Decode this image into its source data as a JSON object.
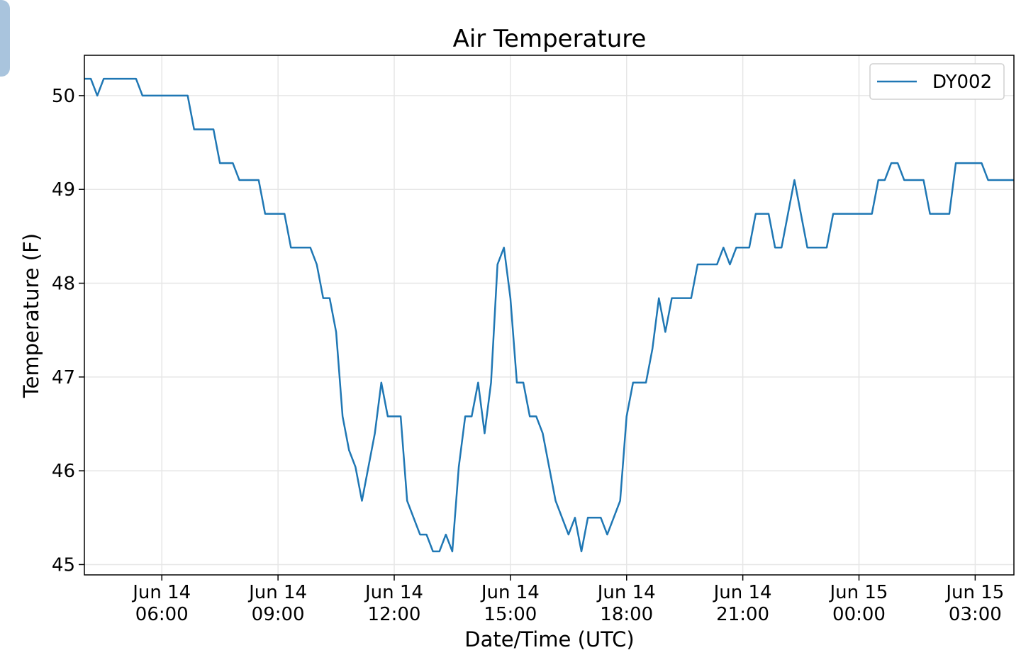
{
  "chart_data": {
    "type": "line",
    "title": "Air Temperature",
    "xlabel": "Date/Time (UTC)",
    "ylabel": "Temperature (F)",
    "x": [
      "Jun 14 04:00",
      "Jun 14 04:10",
      "Jun 14 04:20",
      "Jun 14 04:30",
      "Jun 14 04:40",
      "Jun 14 04:50",
      "Jun 14 05:00",
      "Jun 14 05:10",
      "Jun 14 05:20",
      "Jun 14 05:30",
      "Jun 14 05:40",
      "Jun 14 05:50",
      "Jun 14 06:00",
      "Jun 14 06:10",
      "Jun 14 06:20",
      "Jun 14 06:30",
      "Jun 14 06:40",
      "Jun 14 06:50",
      "Jun 14 07:00",
      "Jun 14 07:10",
      "Jun 14 07:20",
      "Jun 14 07:30",
      "Jun 14 07:40",
      "Jun 14 07:50",
      "Jun 14 08:00",
      "Jun 14 08:10",
      "Jun 14 08:20",
      "Jun 14 08:30",
      "Jun 14 08:40",
      "Jun 14 08:50",
      "Jun 14 09:00",
      "Jun 14 09:10",
      "Jun 14 09:20",
      "Jun 14 09:30",
      "Jun 14 09:40",
      "Jun 14 09:50",
      "Jun 14 10:00",
      "Jun 14 10:10",
      "Jun 14 10:20",
      "Jun 14 10:30",
      "Jun 14 10:40",
      "Jun 14 10:50",
      "Jun 14 11:00",
      "Jun 14 11:10",
      "Jun 14 11:20",
      "Jun 14 11:30",
      "Jun 14 11:40",
      "Jun 14 11:50",
      "Jun 14 12:00",
      "Jun 14 12:10",
      "Jun 14 12:20",
      "Jun 14 12:30",
      "Jun 14 12:40",
      "Jun 14 12:50",
      "Jun 14 13:00",
      "Jun 14 13:10",
      "Jun 14 13:20",
      "Jun 14 13:30",
      "Jun 14 13:40",
      "Jun 14 13:50",
      "Jun 14 14:00",
      "Jun 14 14:10",
      "Jun 14 14:20",
      "Jun 14 14:30",
      "Jun 14 14:40",
      "Jun 14 14:50",
      "Jun 14 15:00",
      "Jun 14 15:10",
      "Jun 14 15:20",
      "Jun 14 15:30",
      "Jun 14 15:40",
      "Jun 14 15:50",
      "Jun 14 16:00",
      "Jun 14 16:10",
      "Jun 14 16:20",
      "Jun 14 16:30",
      "Jun 14 16:40",
      "Jun 14 16:50",
      "Jun 14 17:00",
      "Jun 14 17:10",
      "Jun 14 17:20",
      "Jun 14 17:30",
      "Jun 14 17:40",
      "Jun 14 17:50",
      "Jun 14 18:00",
      "Jun 14 18:10",
      "Jun 14 18:20",
      "Jun 14 18:30",
      "Jun 14 18:40",
      "Jun 14 18:50",
      "Jun 14 19:00",
      "Jun 14 19:10",
      "Jun 14 19:20",
      "Jun 14 19:30",
      "Jun 14 19:40",
      "Jun 14 19:50",
      "Jun 14 20:00",
      "Jun 14 20:10",
      "Jun 14 20:20",
      "Jun 14 20:30",
      "Jun 14 20:40",
      "Jun 14 20:50",
      "Jun 14 21:00",
      "Jun 14 21:10",
      "Jun 14 21:20",
      "Jun 14 21:30",
      "Jun 14 21:40",
      "Jun 14 21:50",
      "Jun 14 22:00",
      "Jun 14 22:10",
      "Jun 14 22:20",
      "Jun 14 22:30",
      "Jun 14 22:40",
      "Jun 14 22:50",
      "Jun 14 23:00",
      "Jun 14 23:10",
      "Jun 14 23:20",
      "Jun 14 23:30",
      "Jun 14 23:40",
      "Jun 14 23:50",
      "Jun 15 00:00",
      "Jun 15 00:10",
      "Jun 15 00:20",
      "Jun 15 00:30",
      "Jun 15 00:40",
      "Jun 15 00:50",
      "Jun 15 01:00",
      "Jun 15 01:10",
      "Jun 15 01:20",
      "Jun 15 01:30",
      "Jun 15 01:40",
      "Jun 15 01:50",
      "Jun 15 02:00",
      "Jun 15 02:10",
      "Jun 15 02:20",
      "Jun 15 02:30",
      "Jun 15 02:40",
      "Jun 15 02:50",
      "Jun 15 03:00",
      "Jun 15 03:10",
      "Jun 15 03:20",
      "Jun 15 03:30",
      "Jun 15 03:40",
      "Jun 15 03:50",
      "Jun 15 04:00"
    ],
    "series": [
      {
        "name": "DY002",
        "color": "#1f77b4",
        "values": [
          50.18,
          50.18,
          50.0,
          50.18,
          50.18,
          50.18,
          50.18,
          50.18,
          50.18,
          50.0,
          50.0,
          50.0,
          50.0,
          50.0,
          50.0,
          50.0,
          50.0,
          49.64,
          49.64,
          49.64,
          49.64,
          49.28,
          49.28,
          49.28,
          49.1,
          49.1,
          49.1,
          49.1,
          48.74,
          48.74,
          48.74,
          48.74,
          48.38,
          48.38,
          48.38,
          48.38,
          48.2,
          47.84,
          47.84,
          47.48,
          46.58,
          46.22,
          46.04,
          45.68,
          46.04,
          46.4,
          46.94,
          46.58,
          46.58,
          46.58,
          45.68,
          45.5,
          45.32,
          45.32,
          45.14,
          45.14,
          45.32,
          45.14,
          46.04,
          46.58,
          46.58,
          46.94,
          46.4,
          46.94,
          48.2,
          48.38,
          47.84,
          46.94,
          46.94,
          46.58,
          46.58,
          46.4,
          46.04,
          45.68,
          45.5,
          45.32,
          45.5,
          45.14,
          45.5,
          45.5,
          45.5,
          45.32,
          45.5,
          45.68,
          46.58,
          46.94,
          46.94,
          46.94,
          47.3,
          47.84,
          47.48,
          47.84,
          47.84,
          47.84,
          47.84,
          48.2,
          48.2,
          48.2,
          48.2,
          48.38,
          48.2,
          48.38,
          48.38,
          48.38,
          48.74,
          48.74,
          48.74,
          48.38,
          48.38,
          48.74,
          49.1,
          48.74,
          48.38,
          48.38,
          48.38,
          48.38,
          48.74,
          48.74,
          48.74,
          48.74,
          48.74,
          48.74,
          48.74,
          49.1,
          49.1,
          49.28,
          49.28,
          49.1,
          49.1,
          49.1,
          49.1,
          48.74,
          48.74,
          48.74,
          48.74,
          49.28,
          49.28,
          49.28,
          49.28,
          49.28,
          49.1,
          49.1,
          49.1,
          49.1,
          49.1
        ]
      }
    ],
    "xlim": [
      "Jun 14 04:00",
      "Jun 15 04:00"
    ],
    "xticks": [
      "Jun 14 06:00",
      "Jun 14 09:00",
      "Jun 14 12:00",
      "Jun 14 15:00",
      "Jun 14 18:00",
      "Jun 14 21:00",
      "Jun 15 00:00",
      "Jun 15 03:00"
    ],
    "ylim": [
      44.89,
      50.43
    ],
    "yticks": [
      45,
      46,
      47,
      48,
      49,
      50
    ],
    "grid": true,
    "legend": "upper right"
  }
}
